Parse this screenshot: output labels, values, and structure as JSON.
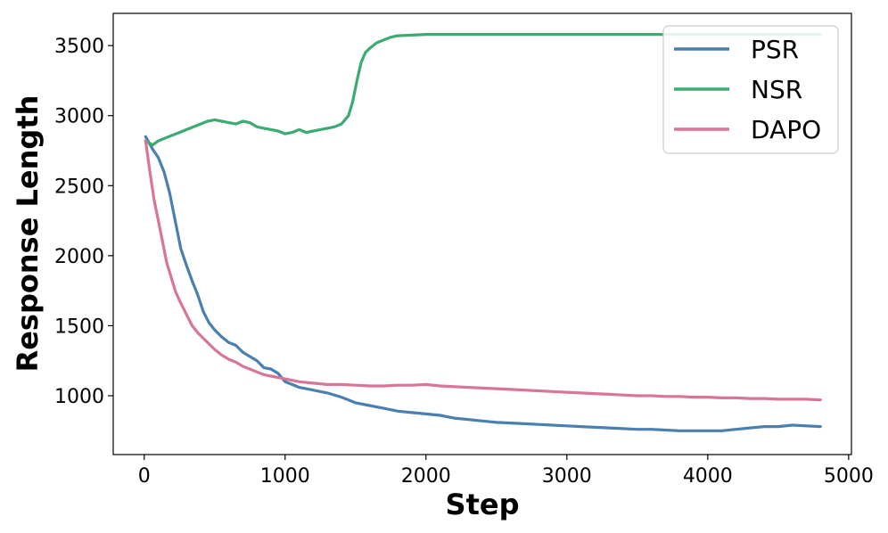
{
  "chart_data": {
    "type": "line",
    "xlabel": "Step",
    "ylabel": "Response Length",
    "xlim": [
      -220,
      5020
    ],
    "ylim": [
      580,
      3730
    ],
    "xticks": [
      0,
      1000,
      2000,
      3000,
      4000,
      5000
    ],
    "yticks": [
      1000,
      1500,
      2000,
      2500,
      3000,
      3500
    ],
    "grid": false,
    "legend_position": "top-right",
    "series": [
      {
        "name": "PSR",
        "color": "#4a7fb2",
        "x": [
          10,
          60,
          100,
          140,
          180,
          220,
          260,
          300,
          340,
          380,
          420,
          460,
          500,
          550,
          600,
          650,
          700,
          750,
          800,
          850,
          900,
          950,
          1000,
          1050,
          1100,
          1200,
          1300,
          1400,
          1500,
          1600,
          1700,
          1800,
          1900,
          2000,
          2100,
          2200,
          2300,
          2400,
          2500,
          2600,
          2700,
          2800,
          2900,
          3000,
          3100,
          3200,
          3300,
          3400,
          3500,
          3600,
          3700,
          3800,
          3900,
          4000,
          4100,
          4200,
          4300,
          4400,
          4500,
          4600,
          4700,
          4800
        ],
        "y": [
          2850,
          2760,
          2700,
          2600,
          2450,
          2250,
          2050,
          1930,
          1820,
          1720,
          1600,
          1520,
          1470,
          1420,
          1380,
          1360,
          1310,
          1280,
          1250,
          1200,
          1190,
          1160,
          1100,
          1080,
          1060,
          1040,
          1020,
          990,
          950,
          930,
          910,
          890,
          880,
          870,
          860,
          840,
          830,
          820,
          810,
          805,
          800,
          795,
          790,
          785,
          780,
          775,
          770,
          765,
          760,
          760,
          755,
          750,
          750,
          750,
          750,
          760,
          770,
          780,
          780,
          790,
          785,
          780
        ]
      },
      {
        "name": "NSR",
        "color": "#3bab71",
        "x": [
          10,
          60,
          100,
          150,
          200,
          250,
          300,
          350,
          400,
          450,
          500,
          550,
          600,
          650,
          700,
          750,
          800,
          850,
          900,
          950,
          1000,
          1050,
          1100,
          1150,
          1200,
          1250,
          1300,
          1350,
          1400,
          1450,
          1480,
          1510,
          1540,
          1570,
          1600,
          1650,
          1700,
          1750,
          1800,
          1900,
          2000,
          2100,
          2200,
          2400,
          2600,
          2800,
          3000,
          3200,
          3400,
          3600,
          3800,
          4000,
          4200,
          4400,
          4600,
          4800
        ],
        "y": [
          2820,
          2790,
          2820,
          2840,
          2860,
          2880,
          2900,
          2920,
          2940,
          2960,
          2970,
          2960,
          2950,
          2940,
          2960,
          2950,
          2920,
          2910,
          2900,
          2890,
          2870,
          2880,
          2900,
          2880,
          2890,
          2900,
          2910,
          2920,
          2940,
          3000,
          3100,
          3250,
          3380,
          3450,
          3480,
          3520,
          3540,
          3560,
          3570,
          3575,
          3580,
          3580,
          3580,
          3580,
          3580,
          3580,
          3580,
          3580,
          3580,
          3580,
          3580,
          3580,
          3580,
          3580,
          3580,
          3580
        ]
      },
      {
        "name": "DAPO",
        "color": "#d9749a",
        "x": [
          10,
          40,
          70,
          100,
          130,
          160,
          190,
          220,
          250,
          280,
          310,
          340,
          380,
          420,
          460,
          500,
          550,
          600,
          650,
          700,
          750,
          800,
          850,
          900,
          950,
          1000,
          1050,
          1100,
          1200,
          1300,
          1400,
          1500,
          1600,
          1700,
          1800,
          1900,
          2000,
          2100,
          2200,
          2300,
          2400,
          2500,
          2600,
          2700,
          2800,
          2900,
          3000,
          3100,
          3200,
          3300,
          3400,
          3500,
          3600,
          3700,
          3800,
          3900,
          4000,
          4100,
          4200,
          4300,
          4400,
          4500,
          4600,
          4700,
          4800
        ],
        "y": [
          2820,
          2600,
          2400,
          2250,
          2100,
          1950,
          1850,
          1750,
          1680,
          1620,
          1560,
          1500,
          1450,
          1410,
          1370,
          1330,
          1290,
          1260,
          1240,
          1210,
          1190,
          1170,
          1150,
          1140,
          1130,
          1120,
          1110,
          1100,
          1090,
          1080,
          1080,
          1075,
          1070,
          1070,
          1075,
          1075,
          1080,
          1070,
          1065,
          1060,
          1055,
          1050,
          1045,
          1040,
          1035,
          1030,
          1025,
          1020,
          1015,
          1010,
          1005,
          1000,
          1000,
          995,
          995,
          990,
          990,
          985,
          985,
          980,
          980,
          975,
          975,
          975,
          970
        ]
      }
    ]
  }
}
